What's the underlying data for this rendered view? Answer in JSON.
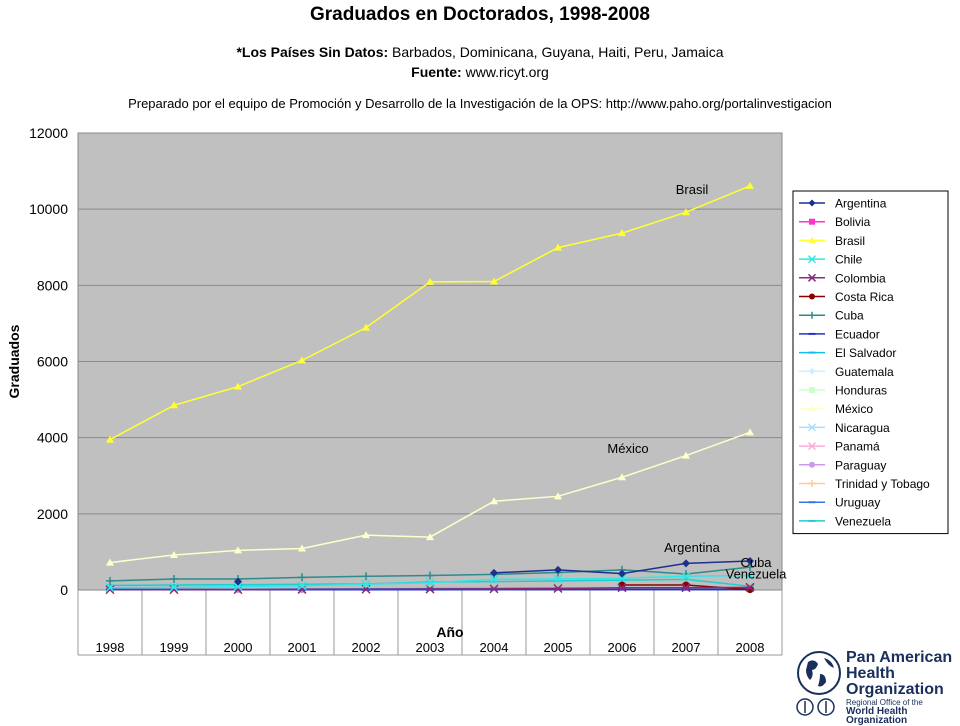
{
  "header": {
    "title": "Graduados en Doctorados, 1998-2008",
    "no_data_label": "*Los Países Sin Datos:",
    "no_data_countries": "Barbados, Dominicana, Guyana, Haiti, Peru, Jamaica",
    "source_label": "Fuente:",
    "source_url": "www.ricyt.org",
    "prepared_by": "Preparado por el equipo de Promoción y Desarrollo de la Investigación de la OPS: http://www.paho.org/portalinvestigacion"
  },
  "logo": {
    "line1": "Pan American",
    "line2": "Health",
    "line3": "Organization",
    "sub1": "Regional Office of the",
    "sub2": "World Health Organization"
  },
  "chart_data": {
    "type": "line",
    "title": "Graduados en Doctorados, 1998-2008",
    "xlabel": "Año",
    "ylabel": "Graduados",
    "categories": [
      "1998",
      "1999",
      "2000",
      "2001",
      "2002",
      "2003",
      "2004",
      "2005",
      "2006",
      "2007",
      "2008"
    ],
    "ylim": [
      0,
      12000
    ],
    "yticks": [
      0,
      2000,
      4000,
      6000,
      8000,
      10000,
      12000
    ],
    "grid": true,
    "legend_position": "right",
    "plot_background": "#c0c0c0",
    "annotations": [
      {
        "text": "Brasil",
        "x": "2007",
        "y": 10400
      },
      {
        "text": "México",
        "x": "2006",
        "y": 3600
      },
      {
        "text": "Argentina",
        "x": "2007",
        "y": 1000
      },
      {
        "text": "Cuba",
        "x": "2008",
        "y": 600
      },
      {
        "text": "Venezuela",
        "x": "2008",
        "y": 300
      }
    ],
    "series": [
      {
        "name": "Argentina",
        "color": "#1f2f8f",
        "marker": "diamond",
        "values": [
          null,
          null,
          220,
          null,
          null,
          null,
          450,
          530,
          430,
          700,
          760
        ]
      },
      {
        "name": "Bolivia",
        "color": "#ff33cc",
        "marker": "square",
        "values": [
          null,
          null,
          null,
          null,
          null,
          null,
          null,
          null,
          null,
          null,
          null
        ]
      },
      {
        "name": "Brasil",
        "color": "#ffff33",
        "marker": "triangle",
        "values": [
          3950,
          4850,
          5340,
          6030,
          6890,
          8090,
          8100,
          8990,
          9370,
          9920,
          10610
        ]
      },
      {
        "name": "Chile",
        "color": "#33e6e6",
        "marker": "x",
        "values": [
          60,
          70,
          90,
          110,
          150,
          190,
          280,
          290,
          310,
          360,
          380
        ]
      },
      {
        "name": "Colombia",
        "color": "#8a2b7a",
        "marker": "x",
        "values": [
          10,
          10,
          10,
          15,
          20,
          25,
          30,
          40,
          60,
          60,
          70
        ]
      },
      {
        "name": "Costa Rica",
        "color": "#8b0000",
        "marker": "circle",
        "values": [
          null,
          null,
          null,
          null,
          null,
          null,
          null,
          null,
          130,
          130,
          10
        ]
      },
      {
        "name": "Cuba",
        "color": "#2e8b8b",
        "marker": "plus",
        "values": [
          240,
          290,
          290,
          330,
          360,
          380,
          410,
          460,
          530,
          420,
          600
        ]
      },
      {
        "name": "Ecuador",
        "color": "#2233cc",
        "marker": "dash",
        "values": [
          5,
          5,
          5,
          5,
          5,
          5,
          10,
          10,
          10,
          10,
          10
        ]
      },
      {
        "name": "El Salvador",
        "color": "#11bbee",
        "marker": "dash",
        "values": [
          null,
          null,
          null,
          null,
          null,
          null,
          null,
          null,
          null,
          null,
          null
        ]
      },
      {
        "name": "Guatemala",
        "color": "#ccf0ff",
        "marker": "diamond",
        "values": [
          null,
          null,
          null,
          null,
          null,
          null,
          null,
          null,
          null,
          null,
          null
        ]
      },
      {
        "name": "Honduras",
        "color": "#ccffcc",
        "marker": "square",
        "values": [
          null,
          null,
          null,
          null,
          null,
          null,
          null,
          null,
          null,
          null,
          null
        ]
      },
      {
        "name": "México",
        "color": "#ffffcc",
        "marker": "triangle",
        "values": [
          720,
          920,
          1040,
          1090,
          1440,
          1390,
          2330,
          2460,
          2960,
          3530,
          4140
        ]
      },
      {
        "name": "Nicaragua",
        "color": "#aaddff",
        "marker": "x",
        "values": [
          null,
          null,
          null,
          null,
          null,
          null,
          null,
          null,
          null,
          null,
          null
        ]
      },
      {
        "name": "Panamá",
        "color": "#ffaadd",
        "marker": "x",
        "values": [
          null,
          null,
          null,
          null,
          null,
          null,
          null,
          null,
          null,
          null,
          null
        ]
      },
      {
        "name": "Paraguay",
        "color": "#cc99ee",
        "marker": "circle",
        "values": [
          null,
          null,
          10,
          10,
          null,
          null,
          null,
          null,
          null,
          null,
          null
        ]
      },
      {
        "name": "Trinidad y Tobago",
        "color": "#ffcc99",
        "marker": "plus",
        "values": [
          null,
          null,
          null,
          null,
          null,
          null,
          null,
          null,
          null,
          null,
          null
        ]
      },
      {
        "name": "Uruguay",
        "color": "#3377dd",
        "marker": "dash",
        "values": [
          20,
          20,
          20,
          25,
          30,
          35,
          40,
          45,
          50,
          50,
          50
        ]
      },
      {
        "name": "Venezuela",
        "color": "#22cccc",
        "marker": "dash",
        "values": [
          120,
          130,
          140,
          150,
          160,
          210,
          220,
          240,
          260,
          280,
          100
        ]
      }
    ]
  }
}
